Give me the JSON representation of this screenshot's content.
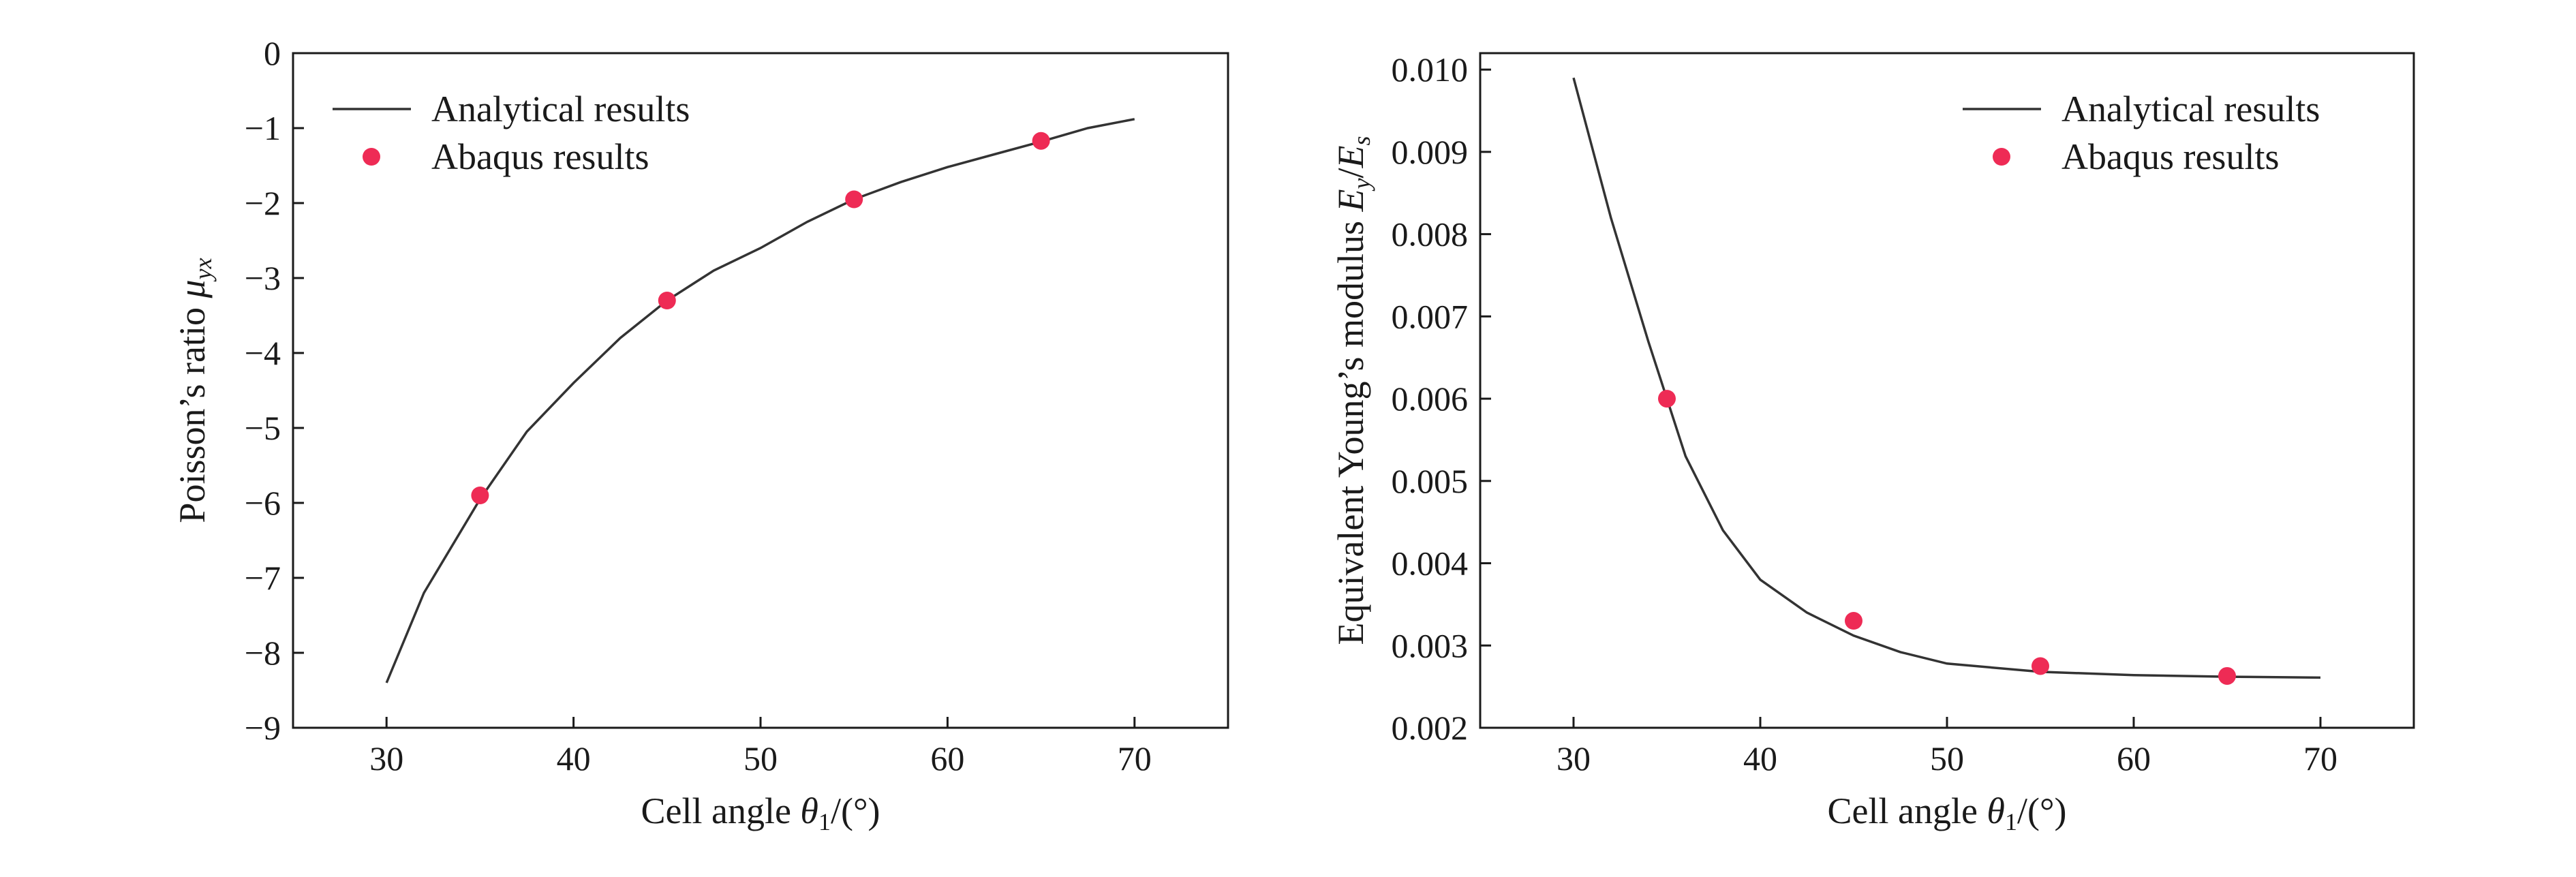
{
  "chart_data": [
    {
      "type": "line",
      "xlabel_pre": "Cell angle ",
      "xlabel_symbol": "θ",
      "xlabel_sub": "1",
      "xlabel_post": "/(°)",
      "ylabel_pre": "Poisson’s ratio ",
      "ylabel_symbol": "μ",
      "ylabel_sub": "yx",
      "xlim": [
        25,
        75
      ],
      "ylim": [
        -9,
        0
      ],
      "xticks": [
        30,
        40,
        50,
        60,
        70
      ],
      "xtick_labels": [
        "30",
        "40",
        "50",
        "60",
        "70"
      ],
      "yticks": [
        0,
        -1,
        -2,
        -3,
        -4,
        -5,
        -6,
        -7,
        -8,
        -9
      ],
      "ytick_labels": [
        "0",
        "−1",
        "−2",
        "−3",
        "−4",
        "−5",
        "−6",
        "−7",
        "−8",
        "−9"
      ],
      "legend_position": "top-left",
      "series": [
        {
          "name": "Analytical results",
          "style": "line",
          "color": "#333333",
          "x": [
            30,
            32,
            35,
            37.5,
            40,
            42.5,
            45,
            47.5,
            50,
            52.5,
            55,
            57.5,
            60,
            62.5,
            65,
            67.5,
            70
          ],
          "y": [
            -8.4,
            -7.2,
            -5.95,
            -5.05,
            -4.4,
            -3.8,
            -3.3,
            -2.9,
            -2.6,
            -2.25,
            -1.95,
            -1.72,
            -1.52,
            -1.35,
            -1.18,
            -1.0,
            -0.88
          ]
        },
        {
          "name": "Abaqus results",
          "style": "scatter",
          "color": "#ee2b55",
          "x": [
            35,
            45,
            55,
            65
          ],
          "y": [
            -5.9,
            -3.3,
            -1.95,
            -1.17
          ]
        }
      ]
    },
    {
      "type": "line",
      "xlabel_pre": "Cell angle ",
      "xlabel_symbol": "θ",
      "xlabel_sub": "1",
      "xlabel_post": "/(°)",
      "ylabel_pre": "Equivalent Young’s modulus ",
      "ylabel_symbol": "E",
      "ylabel_sub": "y",
      "ylabel_slash": "/",
      "ylabel_symbol2": "E",
      "ylabel_sub2": "s",
      "xlim": [
        25,
        75
      ],
      "ylim": [
        0.002,
        0.0102
      ],
      "xticks": [
        30,
        40,
        50,
        60,
        70
      ],
      "xtick_labels": [
        "30",
        "40",
        "50",
        "60",
        "70"
      ],
      "yticks": [
        0.002,
        0.003,
        0.004,
        0.005,
        0.006,
        0.007,
        0.008,
        0.009,
        0.01
      ],
      "ytick_labels": [
        "0.002",
        "0.003",
        "0.004",
        "0.005",
        "0.006",
        "0.007",
        "0.008",
        "0.009",
        "0.010"
      ],
      "legend_position": "top-right",
      "series": [
        {
          "name": "Analytical results",
          "style": "line",
          "color": "#333333",
          "x": [
            30,
            32,
            34,
            35,
            36,
            38,
            40,
            42.5,
            45,
            47.5,
            50,
            55,
            60,
            65,
            70
          ],
          "y": [
            0.0099,
            0.0082,
            0.0067,
            0.006,
            0.0053,
            0.0044,
            0.0038,
            0.0034,
            0.00312,
            0.00292,
            0.00278,
            0.00268,
            0.00264,
            0.00262,
            0.00261
          ]
        },
        {
          "name": "Abaqus results",
          "style": "scatter",
          "color": "#ee2b55",
          "x": [
            35,
            45,
            55,
            65
          ],
          "y": [
            0.006,
            0.0033,
            0.00275,
            0.00263
          ]
        }
      ]
    }
  ]
}
